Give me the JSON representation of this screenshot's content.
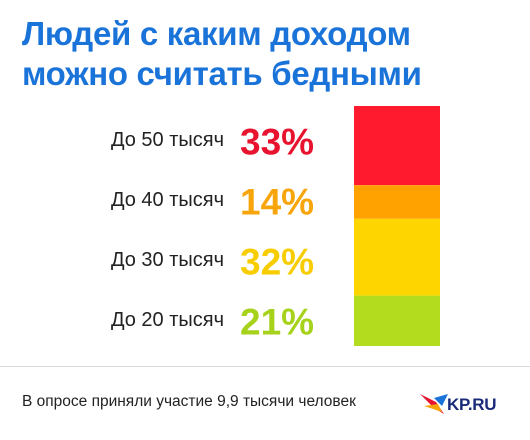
{
  "title_lines": [
    "Людей с каким доходом",
    "можно считать бедными"
  ],
  "colors": {
    "title": "#1a73d9",
    "value_colors": [
      "#e8142f",
      "#f7a50a",
      "#f7cd00",
      "#a6d21c"
    ],
    "bar_colors": [
      "#ff1a2e",
      "#ffa200",
      "#ffd500",
      "#b4dc1e"
    ]
  },
  "chart_data": {
    "type": "bar",
    "orientation": "stacked-vertical",
    "title": "Людей с каким доходом можно считать бедными",
    "categories": [
      "До 50 тысяч",
      "До 40 тысяч",
      "До 30 тысяч",
      "До 20 тысяч"
    ],
    "values": [
      33,
      14,
      32,
      21
    ],
    "value_labels": [
      "33%",
      "14%",
      "32%",
      "21%"
    ],
    "unit": "%"
  },
  "footer": {
    "note": "В опросе приняли участие 9,9 тысячи человек",
    "logo_text": "KP.RU",
    "logo_icon": "swallow-bird-icon"
  }
}
